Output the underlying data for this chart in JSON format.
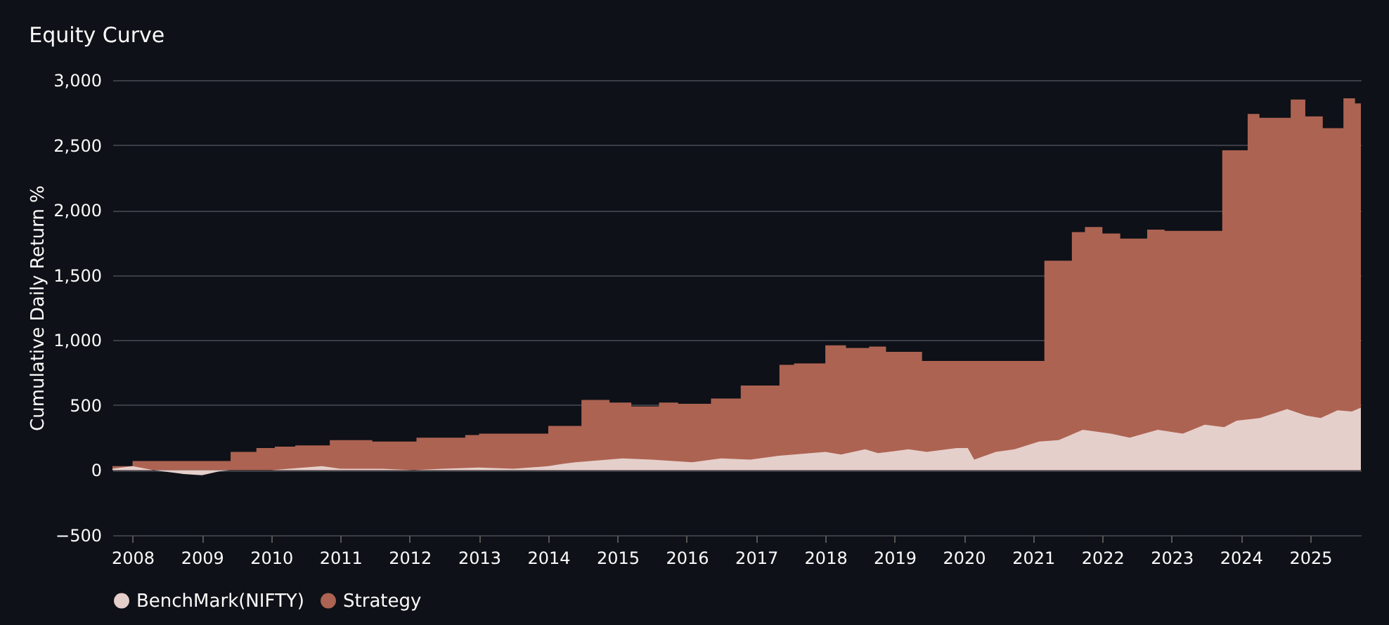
{
  "chart_data": {
    "type": "area",
    "title": "Equity Curve",
    "ylabel": "Cumulative Daily Return %",
    "xlim": [
      "2007-09-17",
      "2025-09-25"
    ],
    "xticks": [
      "2008",
      "2009",
      "2010",
      "2011",
      "2012",
      "2013",
      "2014",
      "2015",
      "2016",
      "2017",
      "2018",
      "2019",
      "2020",
      "2021",
      "2022",
      "2023",
      "2024",
      "2025"
    ],
    "ylim": [
      -500,
      3000
    ],
    "yticks": [
      {
        "value": -500,
        "label": "−500"
      },
      {
        "value": 0,
        "label": "0"
      },
      {
        "value": 500,
        "label": "500"
      },
      {
        "value": 1000,
        "label": "1,000"
      },
      {
        "value": 1500,
        "label": "1,500"
      },
      {
        "value": 2000,
        "label": "2,000"
      },
      {
        "value": 2500,
        "label": "2,500"
      },
      {
        "value": 3000,
        "label": "3,000"
      }
    ],
    "grid": "y",
    "legend": "bottom",
    "series": [
      {
        "name": "BenchMark(NIFTY)",
        "color": "#e5cfcb",
        "x": [
          "2007-09-17",
          "2008-01-01",
          "2008-04-20",
          "2008-09-25",
          "2009-01-01",
          "2009-04-01",
          "2009-05-26",
          "2010-01-01",
          "2010-09-25",
          "2011-01-01",
          "2011-08-08",
          "2012-01-22",
          "2012-06-25",
          "2013-01-01",
          "2013-07-01",
          "2014-01-01",
          "2014-03-25",
          "2014-05-26",
          "2014-11-10",
          "2015-01-26",
          "2015-07-01",
          "2016-01-30",
          "2016-07-01",
          "2016-12-01",
          "2017-05-01",
          "2018-01-01",
          "2018-03-25",
          "2018-07-30",
          "2018-10-05",
          "2019-03-15",
          "2019-06-20",
          "2019-11-25",
          "2020-01-22",
          "2020-02-25",
          "2020-06-18",
          "2020-09-25",
          "2021-02-01",
          "2021-05-15",
          "2021-09-20",
          "2022-02-15",
          "2022-05-25",
          "2022-10-20",
          "2023-03-01",
          "2023-06-25",
          "2023-10-05",
          "2023-12-10",
          "2024-04-10",
          "2024-09-01",
          "2024-12-10",
          "2025-02-25",
          "2025-05-25",
          "2025-08-08",
          "2025-09-25"
        ],
        "values": [
          10,
          30,
          0,
          -30,
          -40,
          -10,
          0,
          0,
          30,
          10,
          10,
          0,
          10,
          20,
          10,
          30,
          50,
          60,
          80,
          90,
          80,
          60,
          90,
          80,
          110,
          140,
          120,
          160,
          130,
          160,
          140,
          170,
          170,
          80,
          140,
          160,
          220,
          230,
          310,
          280,
          250,
          310,
          280,
          350,
          330,
          380,
          400,
          470,
          420,
          400,
          460,
          450,
          480
        ]
      },
      {
        "name": "Strategy",
        "color": "#ad6352",
        "x": [
          "2007-09-17",
          "2008-01-01",
          "2008-01-01",
          "2009-06-01",
          "2009-06-01",
          "2009-10-15",
          "2009-10-15",
          "2010-01-20",
          "2010-01-20",
          "2010-05-08",
          "2010-05-08",
          "2010-11-06",
          "2010-11-06",
          "2011-06-18",
          "2011-06-18",
          "2012-02-06",
          "2012-02-06",
          "2012-10-20",
          "2012-10-20",
          "2013-01-01",
          "2013-01-01",
          "2014-01-01",
          "2014-01-01",
          "2014-06-25",
          "2014-06-25",
          "2014-11-20",
          "2014-11-20",
          "2015-03-15",
          "2015-03-15",
          "2015-08-08",
          "2015-08-08",
          "2015-11-17",
          "2015-11-17",
          "2016-05-08",
          "2016-05-08",
          "2016-10-12",
          "2016-10-12",
          "2017-05-04",
          "2017-05-04",
          "2017-07-20",
          "2017-07-20",
          "2018-01-01",
          "2018-01-01",
          "2018-04-20",
          "2018-04-20",
          "2018-08-20",
          "2018-08-20",
          "2018-11-17",
          "2018-11-17",
          "2019-05-26",
          "2019-05-26",
          "2021-03-01",
          "2021-03-01",
          "2021-07-24",
          "2021-07-24",
          "2021-10-01",
          "2021-10-01",
          "2022-01-01",
          "2022-01-01",
          "2022-04-05",
          "2022-04-05",
          "2022-08-25",
          "2022-08-25",
          "2022-11-25",
          "2022-11-25",
          "2023-09-25",
          "2023-09-25",
          "2024-02-06",
          "2024-02-06",
          "2024-04-08",
          "2024-04-08",
          "2024-09-20",
          "2024-09-20",
          "2024-12-06",
          "2024-12-06",
          "2025-03-08",
          "2025-03-08",
          "2025-06-25",
          "2025-06-25",
          "2025-08-25",
          "2025-08-25",
          "2025-09-25"
        ],
        "values": [
          30,
          30,
          70,
          70,
          140,
          140,
          170,
          170,
          180,
          180,
          190,
          190,
          230,
          230,
          220,
          220,
          250,
          250,
          270,
          270,
          280,
          280,
          340,
          340,
          540,
          540,
          520,
          520,
          490,
          490,
          520,
          520,
          510,
          510,
          550,
          550,
          650,
          650,
          810,
          810,
          820,
          820,
          960,
          960,
          940,
          940,
          950,
          950,
          910,
          910,
          840,
          840,
          1610,
          1610,
          1830,
          1830,
          1870,
          1870,
          1820,
          1820,
          1780,
          1780,
          1850,
          1850,
          1840,
          1840,
          2460,
          2460,
          2740,
          2740,
          2710,
          2710,
          2850,
          2850,
          2720,
          2720,
          2630,
          2630,
          2860,
          2860,
          2820,
          2820
        ]
      }
    ]
  }
}
